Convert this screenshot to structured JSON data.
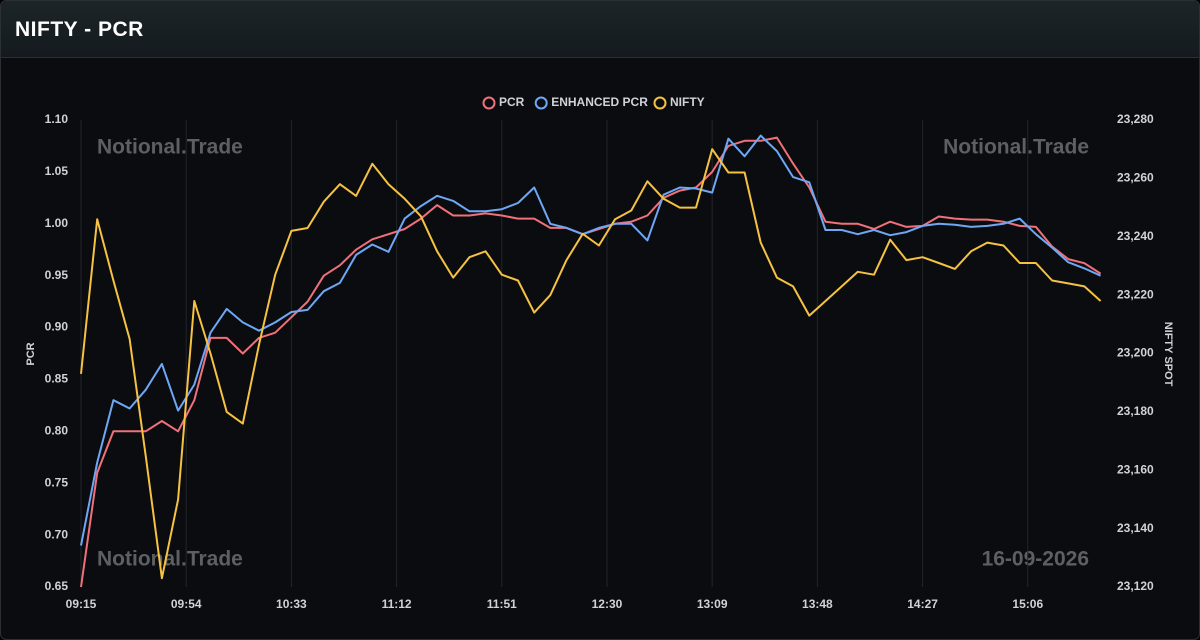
{
  "chart_data": {
    "type": "line",
    "title": "NIFTY - PCR",
    "ylabel": "PCR",
    "y2label": "NIFTY SPOT",
    "annotations": [
      "Notional.Trade",
      "Notional.Trade",
      "Notional.Trade",
      "16-09-2026"
    ],
    "x": [
      555,
      561,
      567,
      573,
      579,
      585,
      591,
      597,
      603,
      609,
      615,
      621,
      627,
      633,
      639,
      645,
      651,
      657,
      663,
      669,
      675,
      681,
      687,
      693,
      699,
      705,
      711,
      717,
      723,
      729,
      735,
      741,
      747,
      753,
      759,
      765,
      771,
      777,
      783,
      789,
      795,
      801,
      807,
      813,
      819,
      825,
      831,
      837,
      843,
      849,
      855,
      861,
      867,
      873,
      879,
      885,
      891,
      897,
      903,
      909,
      915,
      921,
      927,
      933
    ],
    "xlim": [
      555,
      935
    ],
    "xticks": [
      {
        "value": 555,
        "label": "09:15"
      },
      {
        "value": 594,
        "label": "09:54"
      },
      {
        "value": 633,
        "label": "10:33"
      },
      {
        "value": 672,
        "label": "11:12"
      },
      {
        "value": 711,
        "label": "11:51"
      },
      {
        "value": 750,
        "label": "12:30"
      },
      {
        "value": 789,
        "label": "13:09"
      },
      {
        "value": 828,
        "label": "13:48"
      },
      {
        "value": 867,
        "label": "14:27"
      },
      {
        "value": 906,
        "label": "15:06"
      }
    ],
    "xgrid": true,
    "ylim": [
      0.65,
      1.1
    ],
    "yticks": [
      0.65,
      {
        "value": 0.7,
        "label": "0.70"
      },
      0.75,
      {
        "value": 0.8,
        "label": "0.80"
      },
      0.85,
      {
        "value": 0.9,
        "label": "0.90"
      },
      0.95,
      {
        "value": 1.0,
        "label": "1.00"
      },
      1.05,
      {
        "value": 1.1,
        "label": "1.10"
      }
    ],
    "y2lim": [
      23120,
      23280
    ],
    "y2ticks": [
      {
        "value": 23120,
        "label": "23,120"
      },
      {
        "value": 23140,
        "label": "23,140"
      },
      {
        "value": 23160,
        "label": "23,160"
      },
      {
        "value": 23180,
        "label": "23,180"
      },
      {
        "value": 23200,
        "label": "23,200"
      },
      {
        "value": 23220,
        "label": "23,220"
      },
      {
        "value": 23240,
        "label": "23,240"
      },
      {
        "value": 23260,
        "label": "23,260"
      },
      {
        "value": 23280,
        "label": "23,280"
      }
    ],
    "legend": "top",
    "series": [
      {
        "name": "PCR",
        "color": "#f0717a",
        "values": [
          0.65,
          0.76,
          0.8,
          0.8,
          0.8,
          0.81,
          0.8,
          0.83,
          0.89,
          0.89,
          0.875,
          0.89,
          0.895,
          0.91,
          0.925,
          0.95,
          0.96,
          0.975,
          0.985,
          0.99,
          0.995,
          1.005,
          1.018,
          1.008,
          1.008,
          1.01,
          1.008,
          1.005,
          1.005,
          0.996,
          0.996,
          0.99,
          0.995,
          1.0,
          1.002,
          1.008,
          1.025,
          1.032,
          1.035,
          1.05,
          1.075,
          1.08,
          1.08,
          1.083,
          1.058,
          1.035,
          1.002,
          1.0,
          1.0,
          0.995,
          1.002,
          0.997,
          0.998,
          1.007,
          1.005,
          1.004,
          1.004,
          1.002,
          0.998,
          0.997,
          0.978,
          0.966,
          0.962,
          0.952
        ]
      },
      {
        "name": "ENHANCED PCR",
        "color": "#6ea8f5",
        "values": [
          0.69,
          0.77,
          0.83,
          0.822,
          0.84,
          0.865,
          0.82,
          0.845,
          0.895,
          0.918,
          0.905,
          0.897,
          0.905,
          0.915,
          0.917,
          0.935,
          0.943,
          0.97,
          0.98,
          0.973,
          1.005,
          1.017,
          1.027,
          1.022,
          1.012,
          1.012,
          1.014,
          1.02,
          1.035,
          1.0,
          0.996,
          0.99,
          0.996,
          1.0,
          1.0,
          0.984,
          1.028,
          1.035,
          1.034,
          1.03,
          1.082,
          1.065,
          1.085,
          1.07,
          1.045,
          1.04,
          0.994,
          0.994,
          0.99,
          0.994,
          0.989,
          0.992,
          0.998,
          1.0,
          0.999,
          0.997,
          0.998,
          1.0,
          1.005,
          0.99,
          0.977,
          0.963,
          0.957,
          0.95
        ]
      },
      {
        "name": "NIFTY",
        "color": "#f5c242",
        "axis": "y2",
        "values": [
          23193,
          23246,
          23225,
          23205,
          23165,
          23123,
          23150,
          23218,
          23200,
          23180,
          23176,
          23203,
          23227,
          23242,
          23243,
          23252,
          23258,
          23254,
          23265,
          23258,
          23253,
          23247,
          23235,
          23226,
          23233,
          23235,
          23227,
          23225,
          23214,
          23220,
          23232,
          23241,
          23237,
          23246,
          23249,
          23259,
          23253,
          23250,
          23250,
          23270,
          23262,
          23262,
          23238,
          23226,
          23223,
          23213,
          23218,
          23223,
          23228,
          23227,
          23239,
          23232,
          23233,
          23231,
          23229,
          23235,
          23238,
          23237,
          23231,
          23231,
          23225,
          23224,
          23223,
          23218
        ]
      }
    ]
  }
}
